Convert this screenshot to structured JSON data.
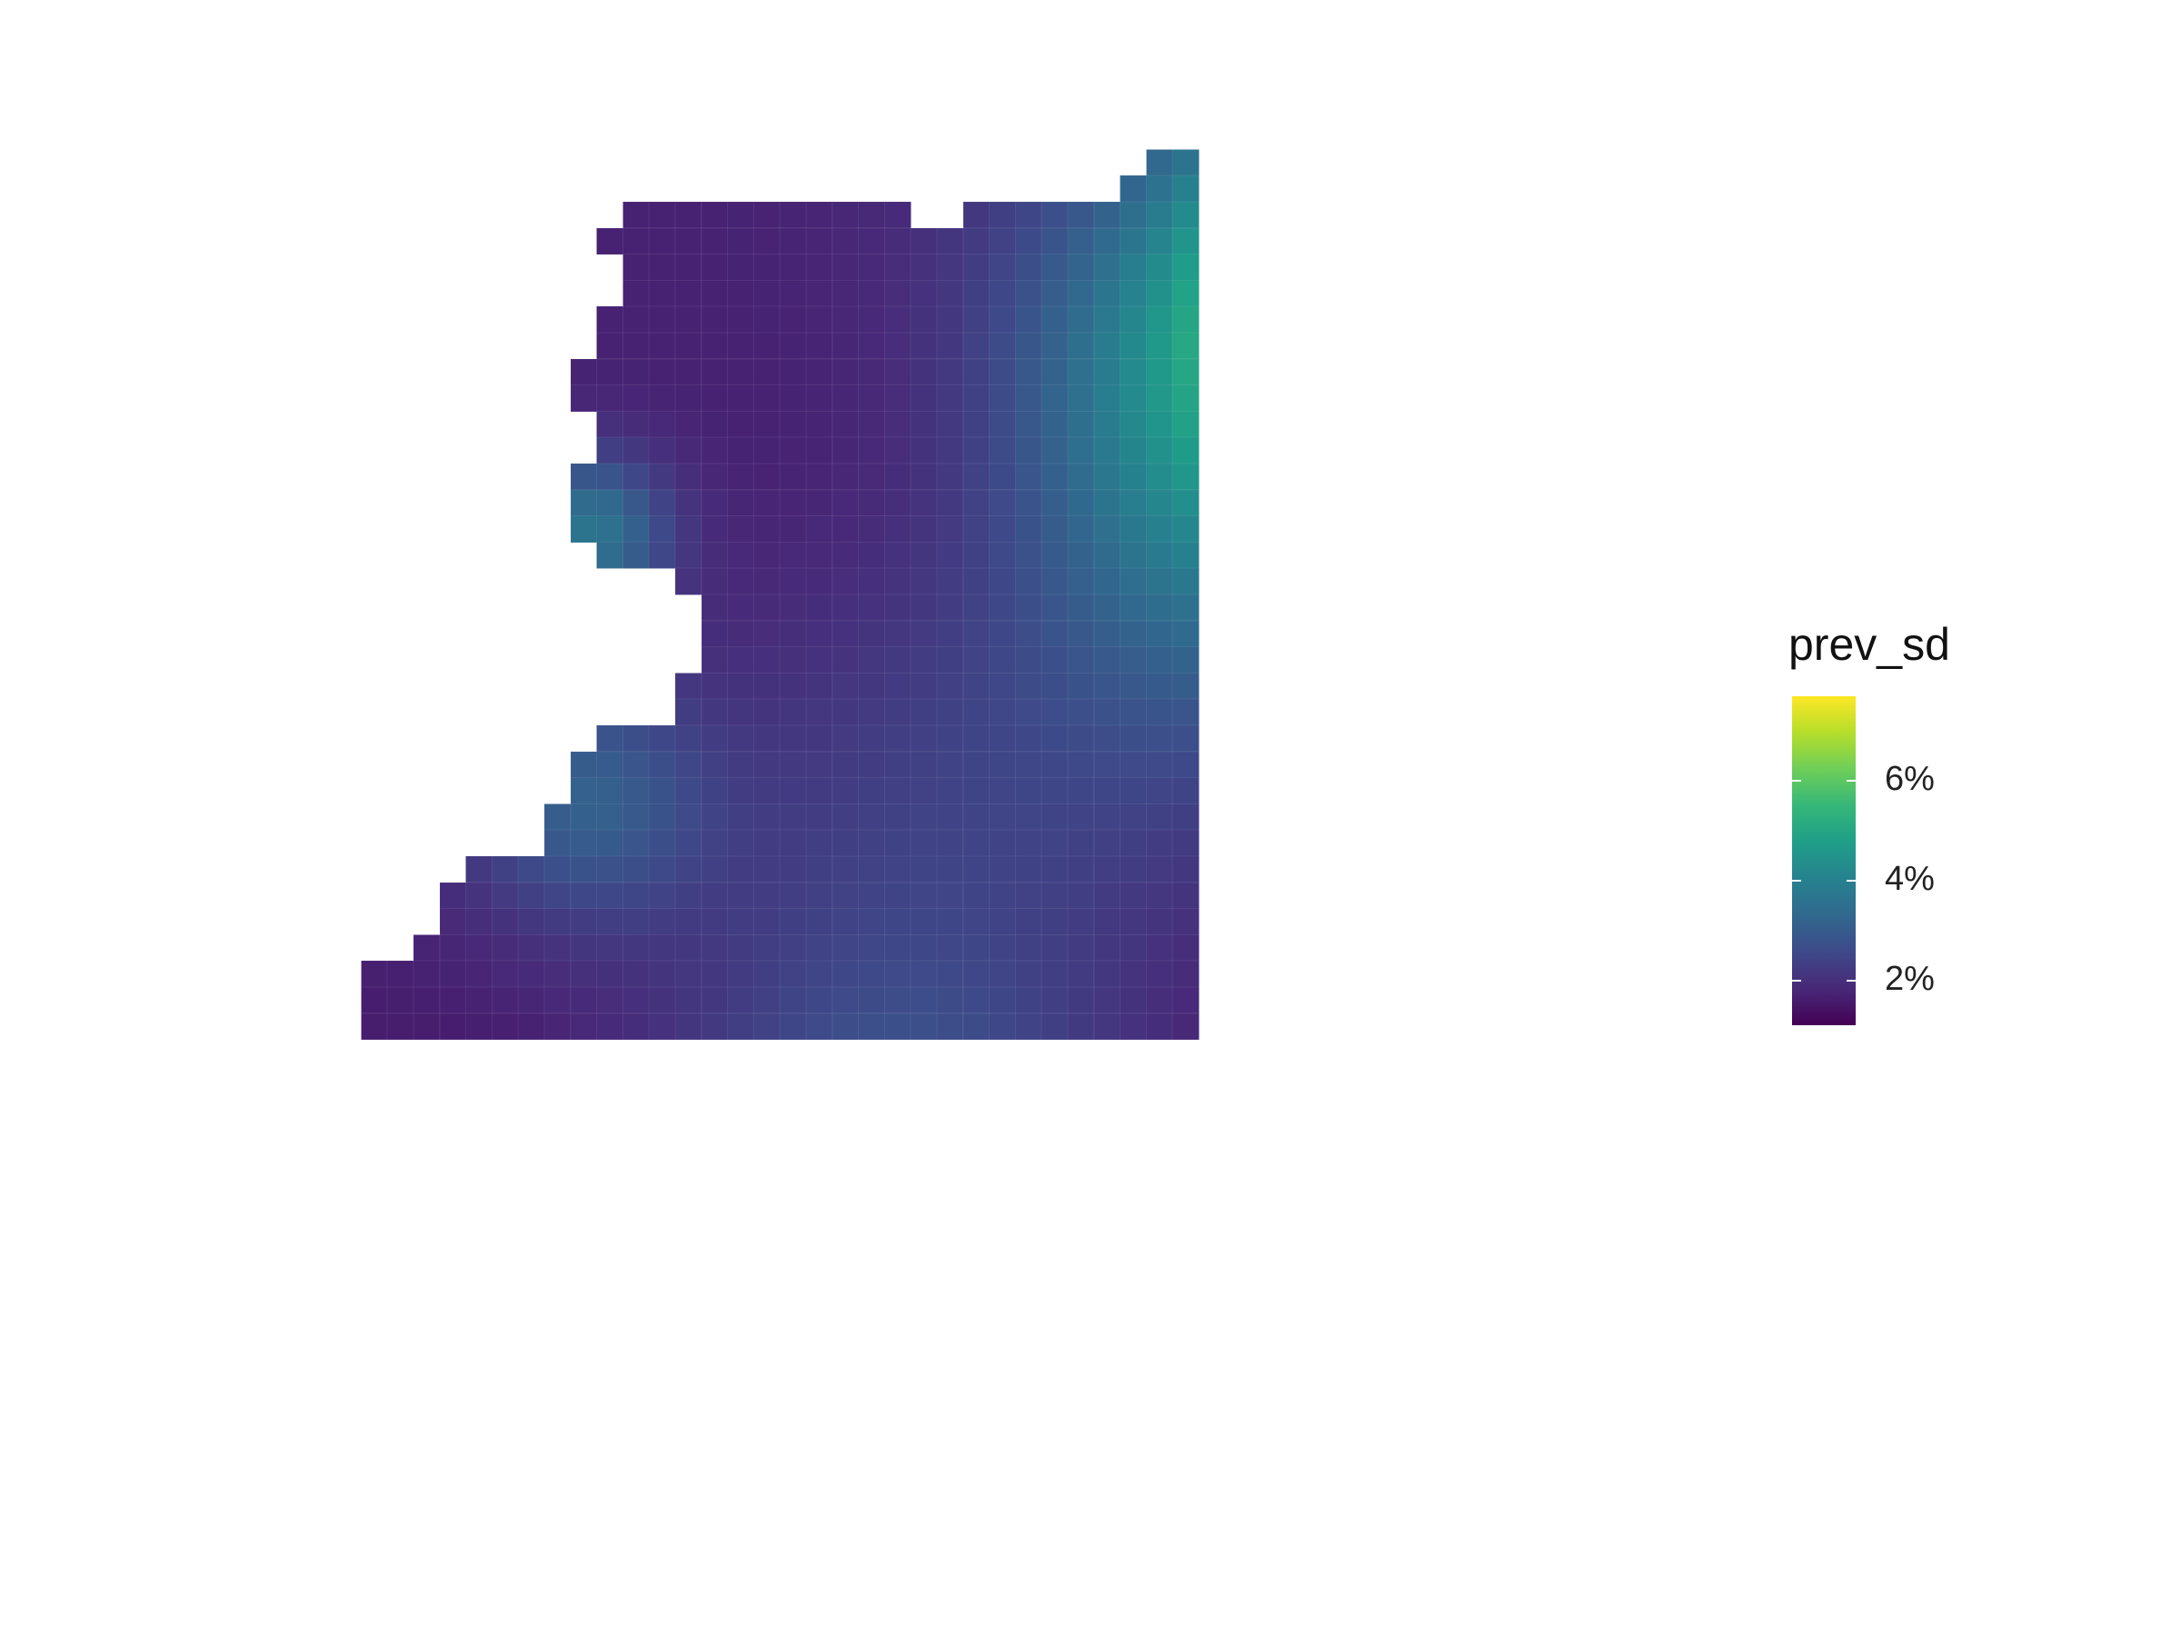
{
  "chart_data": {
    "type": "heatmap",
    "variable": "prev_sd",
    "legend": {
      "title": "prev_sd",
      "position": "right",
      "scale": "viridis",
      "range_percent": [
        0.3,
        6.8
      ],
      "ticks": [
        {
          "value": 2,
          "label": "2%"
        },
        {
          "value": 4,
          "label": "4%"
        },
        {
          "value": 6,
          "label": "6%"
        }
      ]
    },
    "colors": {
      "viridis_low": "#440154",
      "viridis_mid_low": "#3b528b",
      "viridis_mid": "#21918c",
      "viridis_mid_high": "#5ec962",
      "viridis_high": "#fde725"
    },
    "grid": false,
    "axes": "none"
  }
}
